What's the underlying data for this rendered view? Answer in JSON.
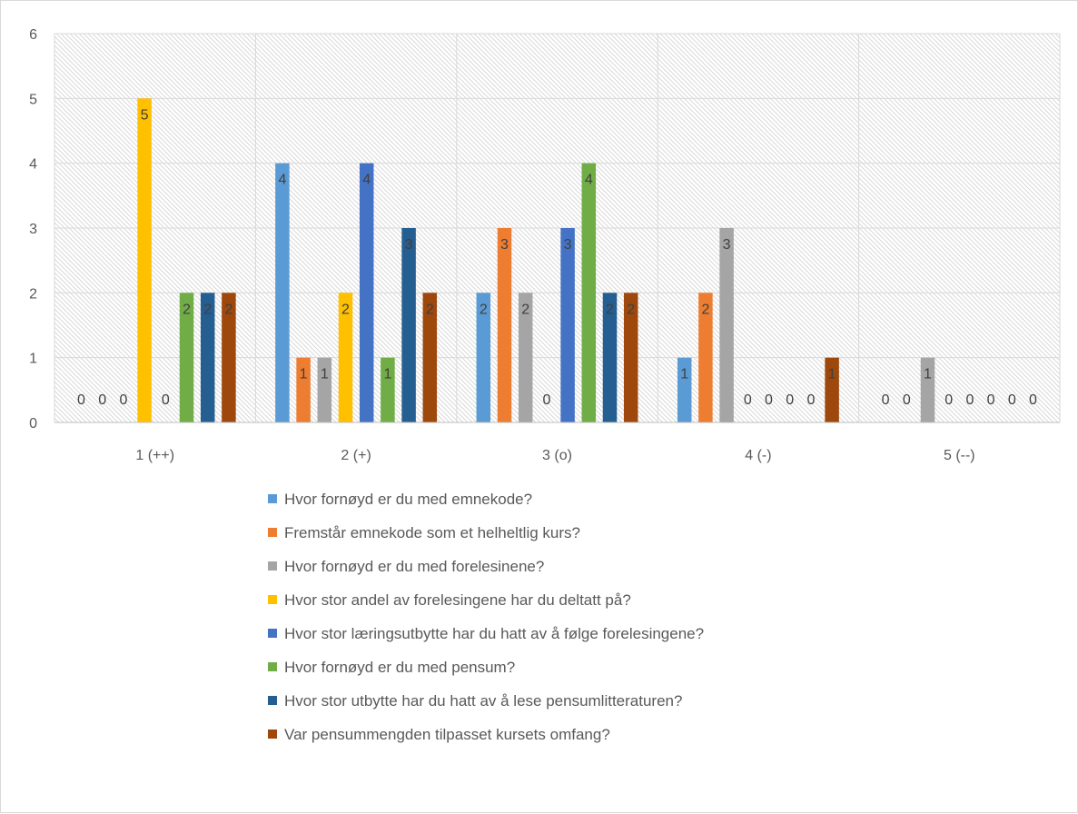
{
  "chart_data": {
    "type": "bar",
    "title": "",
    "xlabel": "",
    "ylabel": "",
    "categories": [
      "1 (++)",
      "2 (+)",
      "3 (o)",
      "4 (-)",
      "5 (--)"
    ],
    "ylim": [
      0,
      6
    ],
    "yticks": [
      0,
      1,
      2,
      3,
      4,
      5,
      6
    ],
    "grid": true,
    "plot_background": "diagonal hatch",
    "legend_position": "bottom",
    "series": [
      {
        "name": "Hvor fornøyd er du med emnekode?",
        "color": "#5b9bd5",
        "values": [
          0,
          4,
          2,
          1,
          0
        ]
      },
      {
        "name": "Fremstår emnekode som et helheltlig kurs?",
        "color": "#ed7d31",
        "values": [
          0,
          1,
          3,
          2,
          0
        ]
      },
      {
        "name": "Hvor fornøyd er du med forelesinene?",
        "color": "#a5a5a5",
        "values": [
          0,
          1,
          2,
          3,
          1
        ]
      },
      {
        "name": "Hvor stor andel av forelesingene har du deltatt på?",
        "color": "#ffc000",
        "values": [
          5,
          2,
          0,
          0,
          0
        ]
      },
      {
        "name": "Hvor stor læringsutbytte har du hatt av å følge forelesingene?",
        "color": "#4472c4",
        "values": [
          0,
          4,
          3,
          0,
          0
        ]
      },
      {
        "name": "Hvor fornøyd er du med pensum?",
        "color": "#70ad47",
        "values": [
          2,
          1,
          4,
          0,
          0
        ]
      },
      {
        "name": "Hvor stor utbytte har du hatt av å lese pensumlitteraturen?",
        "color": "#255e91",
        "values": [
          2,
          3,
          2,
          0,
          0
        ]
      },
      {
        "name": "Var pensummengden tilpasset kursets omfang?",
        "color": "#9e480e",
        "values": [
          2,
          2,
          2,
          1,
          0
        ]
      }
    ]
  }
}
